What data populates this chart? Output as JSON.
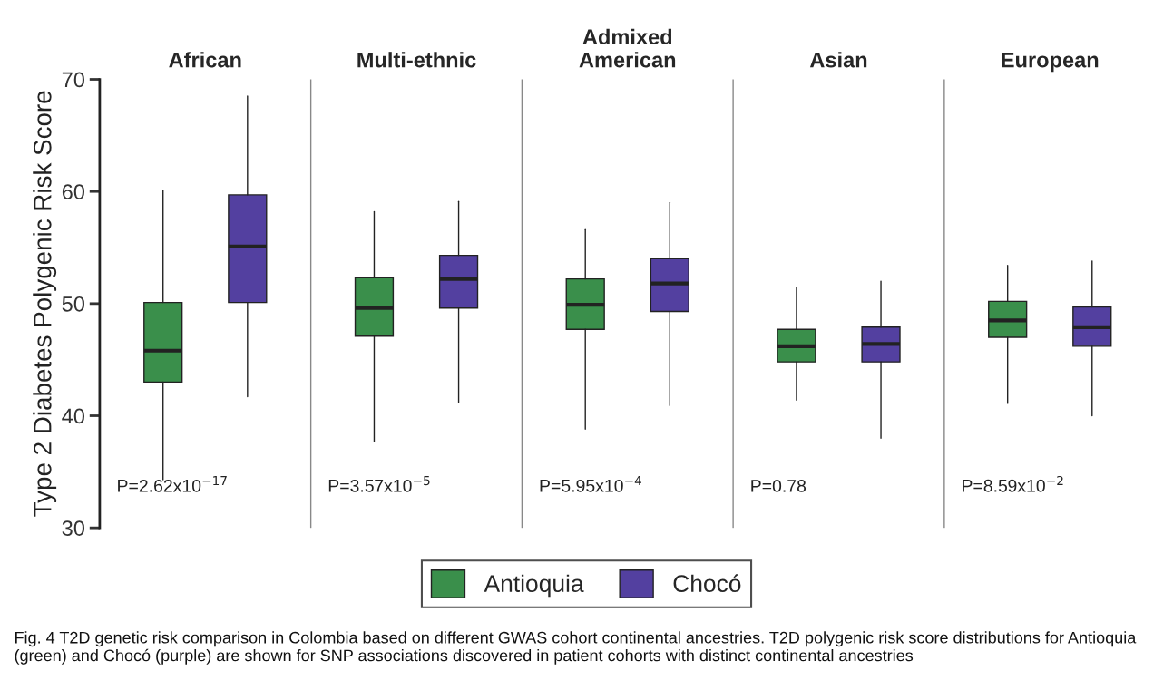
{
  "chart_data": {
    "type": "box",
    "ylabel": "Type 2 Diabetes Polygenic Risk Score",
    "categories": [
      "African",
      "Multi-ethnic",
      "Admixed\nAmerican",
      "Asian",
      "European"
    ],
    "ylim": [
      30,
      70
    ],
    "yticks": [
      30,
      40,
      50,
      60,
      70
    ],
    "legend": "bottom",
    "series": [
      {
        "name": "Antioquia",
        "color": "#3a8f4b",
        "boxes": [
          {
            "low": 34.3,
            "q1": 43.0,
            "median": 45.8,
            "q3": 50.1,
            "high": 60.1
          },
          {
            "low": 37.7,
            "q1": 47.1,
            "median": 49.6,
            "q3": 52.3,
            "high": 58.2
          },
          {
            "low": 38.8,
            "q1": 47.7,
            "median": 49.9,
            "q3": 52.2,
            "high": 56.6
          },
          {
            "low": 41.4,
            "q1": 44.8,
            "median": 46.2,
            "q3": 47.7,
            "high": 51.4
          },
          {
            "low": 41.1,
            "q1": 47.0,
            "median": 48.5,
            "q3": 50.2,
            "high": 53.4
          }
        ]
      },
      {
        "name": "Chocó",
        "color": "#5340a0",
        "boxes": [
          {
            "low": 41.7,
            "q1": 50.1,
            "median": 55.1,
            "q3": 59.7,
            "high": 68.5
          },
          {
            "low": 41.2,
            "q1": 49.6,
            "median": 52.2,
            "q3": 54.3,
            "high": 59.1
          },
          {
            "low": 40.9,
            "q1": 49.3,
            "median": 51.8,
            "q3": 54.0,
            "high": 59.0
          },
          {
            "low": 38.0,
            "q1": 44.8,
            "median": 46.4,
            "q3": 47.9,
            "high": 52.0
          },
          {
            "low": 40.0,
            "q1": 46.2,
            "median": 47.9,
            "q3": 49.7,
            "high": 53.8
          }
        ]
      }
    ],
    "annotations": [
      "P=2.62x10$^{−17}$",
      "P=3.57x10$^{−5}$",
      "P=5.95x10$^{−4}$",
      "P=0.78",
      "P=8.59x10$^{−2}$",
      "Fig. 4 T2D genetic risk comparison in Colombia based on different GWAS cohort continental ancestries. T2D polygenic risk score distributions for Antioquia (green) and Chocó (purple) are shown for SNP associations discovered in patient cohorts with distinct continental ancestries"
    ]
  }
}
